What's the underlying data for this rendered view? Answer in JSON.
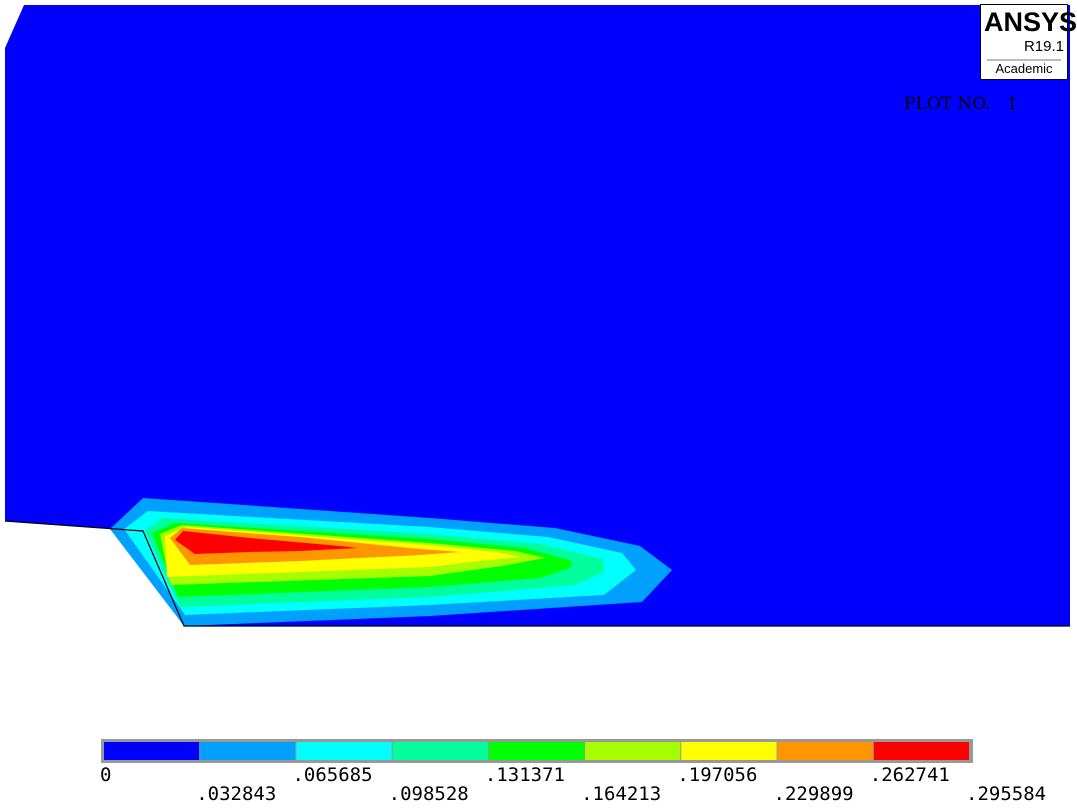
{
  "logo": {
    "brand": "ANSYS",
    "release": "R19.1",
    "edition": "Academic"
  },
  "plot_label": "PLOT NO.   1",
  "contour_colors": [
    "#0000ff",
    "#00a0ff",
    "#00ffff",
    "#00ff9c",
    "#00ff00",
    "#a6ff00",
    "#ffff00",
    "#ff9600",
    "#ff0000"
  ],
  "legend_ticks": [
    "0",
    ".032843",
    ".065685",
    ".098528",
    ".131371",
    ".164213",
    ".197056",
    ".229899",
    ".262741",
    ".295584"
  ]
}
